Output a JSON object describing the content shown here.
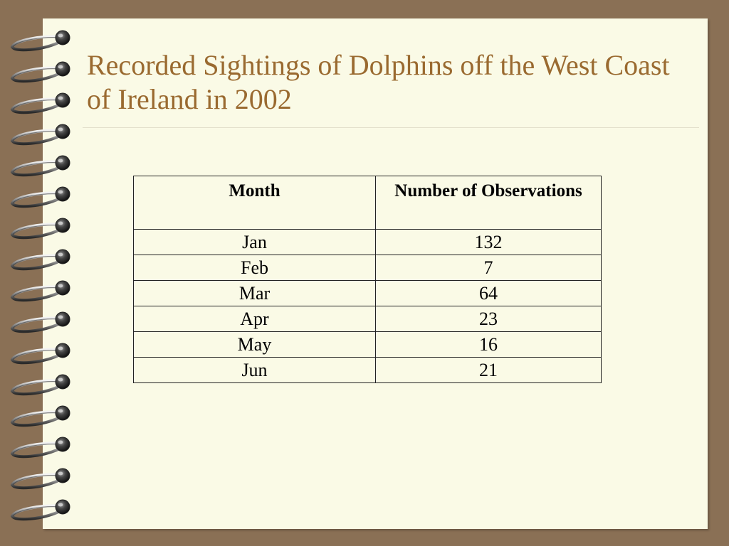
{
  "title": "Recorded Sightings of Dolphins off the West Coast of Ireland in 2002",
  "table": {
    "headers": [
      "Month",
      "Number of Observations"
    ],
    "rows": [
      [
        "Jan",
        "132"
      ],
      [
        "Feb",
        "7"
      ],
      [
        "Mar",
        "64"
      ],
      [
        "Apr",
        "23"
      ],
      [
        "May",
        "16"
      ],
      [
        "Jun",
        "21"
      ]
    ]
  },
  "colors": {
    "background": "#8a7055",
    "page": "#fafae6",
    "title": "#9a6a30"
  },
  "decoration": {
    "binding": "spiral-binding",
    "ring_count": 16
  }
}
